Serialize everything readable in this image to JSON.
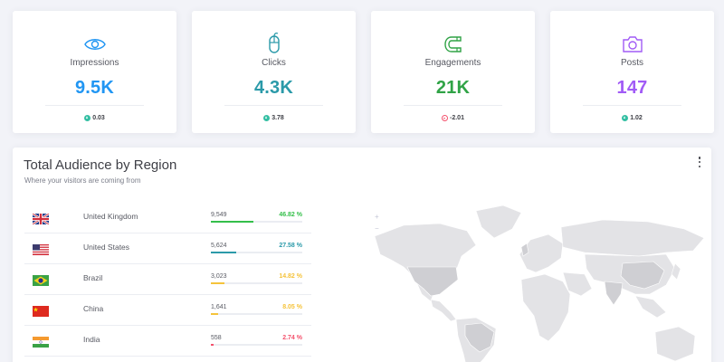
{
  "stats": [
    {
      "label": "Impressions",
      "value": "9.5K",
      "change": "0.03",
      "trend": "up",
      "color": "#2196f3",
      "trend_color": "#34bfa3",
      "icon": "eye-icon"
    },
    {
      "label": "Clicks",
      "value": "4.3K",
      "change": "3.78",
      "trend": "up",
      "color": "#2b9aa9",
      "trend_color": "#34bfa3",
      "icon": "mouse-icon"
    },
    {
      "label": "Engagements",
      "value": "21K",
      "change": "-2.01",
      "trend": "down",
      "color": "#30a346",
      "trend_color": "#f4516c",
      "icon": "magnet-icon"
    },
    {
      "label": "Posts",
      "value": "147",
      "change": "1.02",
      "trend": "up",
      "color": "#a15bf6",
      "trend_color": "#34bfa3",
      "icon": "camera-icon"
    }
  ],
  "panel": {
    "title": "Total Audience by Region",
    "subtitle": "Where your visitors are coming from"
  },
  "regions": [
    {
      "country": "United Kingdom",
      "count": "9,549",
      "percent": "46.82 %",
      "fill": 0.47,
      "color": "#34bf4a",
      "flag": "uk-flag-icon"
    },
    {
      "country": "United States",
      "count": "5,624",
      "percent": "27.58 %",
      "fill": 0.28,
      "color": "#2b9aa9",
      "flag": "us-flag-icon"
    },
    {
      "country": "Brazil",
      "count": "3,023",
      "percent": "14.82 %",
      "fill": 0.15,
      "color": "#f5c33b",
      "flag": "brazil-flag-icon"
    },
    {
      "country": "China",
      "count": "1,641",
      "percent": "8.05 %",
      "fill": 0.08,
      "color": "#f5c33b",
      "flag": "china-flag-icon"
    },
    {
      "country": "India",
      "count": "558",
      "percent": "2.74 %",
      "fill": 0.03,
      "color": "#f4516c",
      "flag": "india-flag-icon"
    }
  ],
  "map": {
    "zoom_in": "+",
    "zoom_out": "−",
    "land_color": "#e3e3e6",
    "highlight_color": "#cfcfd3"
  }
}
